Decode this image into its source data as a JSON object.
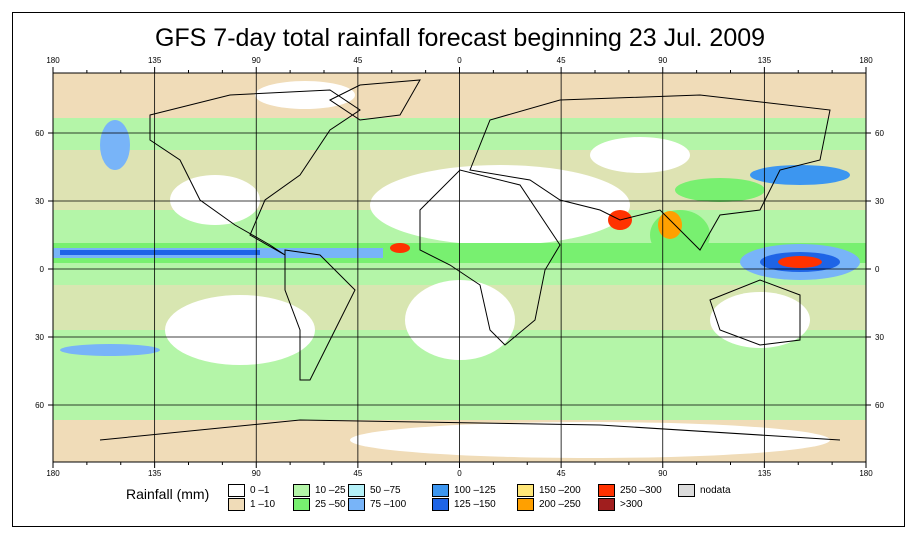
{
  "title": "GFS 7-day total rainfall forecast beginning 23 Jul. 2009",
  "map": {
    "lon_labels": [
      "180",
      "135",
      "90",
      "45",
      "0",
      "45",
      "90",
      "135",
      "180"
    ],
    "lat_labels": [
      "60",
      "30",
      "0",
      "30",
      "60"
    ]
  },
  "legend": {
    "title": "Rainfall (mm)",
    "items": [
      {
        "label": "0 –1",
        "color": "#ffffff"
      },
      {
        "label": "1 –10",
        "color": "#f0dcb8"
      },
      {
        "label": "10 –25",
        "color": "#b4f5a8"
      },
      {
        "label": "25 –50",
        "color": "#78f070"
      },
      {
        "label": "50 –75",
        "color": "#b4f0f8"
      },
      {
        "label": "75 –100",
        "color": "#78b4f8"
      },
      {
        "label": "100 –125",
        "color": "#3c96f0"
      },
      {
        "label": "125 –150",
        "color": "#1e64e6"
      },
      {
        "label": "150 –200",
        "color": "#ffe678"
      },
      {
        "label": "200 –250",
        "color": "#ffa000"
      },
      {
        "label": "250 –300",
        "color": "#ff3200"
      },
      {
        "label": ">300",
        "color": "#a01e1e"
      },
      {
        "label": "nodata",
        "color": "#dcdcdc"
      }
    ]
  }
}
